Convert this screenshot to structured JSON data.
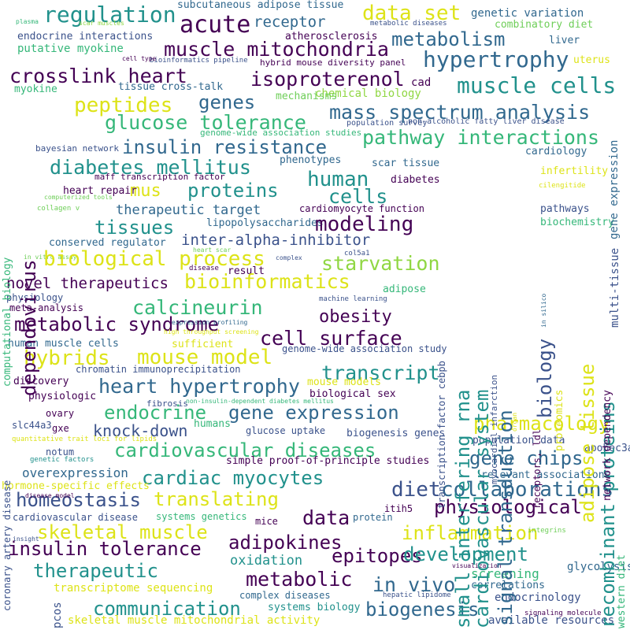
{
  "palette": {
    "dark_purple": "#440154",
    "indigo": "#3b528b",
    "blue": "#31688e",
    "teal": "#21918c",
    "green": "#35b779",
    "light_green": "#6ece58",
    "lime": "#90d743",
    "yellow": "#dde318",
    "bright_yellow": "#fde725"
  },
  "words": [
    {
      "text": "subcutaneous adipose tissue"
    },
    {
      "text": "data set"
    },
    {
      "text": "genetic variation"
    },
    {
      "text": "regulation"
    },
    {
      "text": "acute"
    },
    {
      "text": "receptor"
    },
    {
      "text": "combinatory diet"
    },
    {
      "text": "endocrine interactions"
    },
    {
      "text": "metabolism"
    },
    {
      "text": "muscle mitochondria"
    },
    {
      "text": "atherosclerosis"
    },
    {
      "text": "liver"
    },
    {
      "text": "putative myokine"
    },
    {
      "text": "hypertrophy"
    },
    {
      "text": "uterus"
    },
    {
      "text": "hybrid mouse diversity panel"
    },
    {
      "text": "bioinformatics pipeline"
    },
    {
      "text": "crosslink heart"
    },
    {
      "text": "isoproterenol"
    },
    {
      "text": "cad"
    },
    {
      "text": "muscle cells"
    },
    {
      "text": "myokine"
    },
    {
      "text": "tissue cross-talk"
    },
    {
      "text": "chemical biology"
    },
    {
      "text": "mechanisms"
    },
    {
      "text": "genes"
    },
    {
      "text": "peptides"
    },
    {
      "text": "mass spectrum analysis"
    },
    {
      "text": "glucose tolerance"
    },
    {
      "text": "gene expression"
    },
    {
      "text": "non-alcoholic fatty liver disease"
    },
    {
      "text": "population survey"
    },
    {
      "text": "genome-wide association studies"
    },
    {
      "text": "insulin resistance"
    },
    {
      "text": "pathway interactions"
    },
    {
      "text": "bayesian network"
    },
    {
      "text": "phenotypes"
    },
    {
      "text": "cardiology"
    },
    {
      "text": "diabetes mellitus"
    },
    {
      "text": "scar tissue"
    },
    {
      "text": "dependovirus"
    },
    {
      "text": "computational biology"
    },
    {
      "text": "maff transcription factor"
    },
    {
      "text": "human"
    },
    {
      "text": "infertility"
    },
    {
      "text": "mus"
    },
    {
      "text": "proteins"
    },
    {
      "text": "diabetes"
    },
    {
      "text": "heart repair"
    },
    {
      "text": "cells"
    },
    {
      "text": "cilengitide"
    },
    {
      "text": "computerized tools"
    },
    {
      "text": "therapeutic target"
    },
    {
      "text": "cardiomyocyte function"
    },
    {
      "text": "pathways"
    },
    {
      "text": "collagen v"
    },
    {
      "text": "lipopolysaccharides"
    },
    {
      "text": "tissues"
    },
    {
      "text": "modeling"
    },
    {
      "text": "biochemistry"
    },
    {
      "text": "conserved regulator"
    },
    {
      "text": "inter-alpha-inhibitor"
    },
    {
      "text": "multi-tissue"
    },
    {
      "text": "heart scar"
    },
    {
      "text": "col5a1"
    },
    {
      "text": "in vitro assay"
    },
    {
      "text": "complex"
    },
    {
      "text": "biological process"
    },
    {
      "text": "starvation"
    },
    {
      "text": "disease"
    },
    {
      "text": "result"
    },
    {
      "text": "novel therapeutics"
    },
    {
      "text": "bioinformatics"
    },
    {
      "text": "adipose"
    },
    {
      "text": "physiology"
    },
    {
      "text": "machine learning"
    },
    {
      "text": "meta-analysis"
    },
    {
      "text": "calcineurin"
    },
    {
      "text": "metabolic syndrome"
    },
    {
      "text": "obesity"
    },
    {
      "text": "expression profiling"
    },
    {
      "text": "cell surface"
    },
    {
      "text": "high throughput screening"
    },
    {
      "text": "human muscle cells"
    },
    {
      "text": "sufficient"
    },
    {
      "text": "genome-wide association study"
    },
    {
      "text": "hybrids"
    },
    {
      "text": "mouse model"
    },
    {
      "text": "chromatin immunoprecipitation"
    },
    {
      "text": "transcript"
    },
    {
      "text": "mouse models"
    },
    {
      "text": "discovery"
    },
    {
      "text": "heart hypertrophy"
    },
    {
      "text": "biological sex"
    },
    {
      "text": "physiologic"
    },
    {
      "text": "fibrosis"
    },
    {
      "text": "ovary"
    },
    {
      "text": "non-insulin-dependent diabetes mellitus"
    },
    {
      "text": "endocrine"
    },
    {
      "text": "gene expression"
    },
    {
      "text": "slc44a3"
    },
    {
      "text": "gxe"
    },
    {
      "text": "humans"
    },
    {
      "text": "knock-down"
    },
    {
      "text": "glucose uptake"
    },
    {
      "text": "biogenesis genes"
    },
    {
      "text": "pharmacology"
    },
    {
      "text": "quantitative trait loci for lipids"
    },
    {
      "text": "notum"
    },
    {
      "text": "population data"
    },
    {
      "text": "cardiovascular diseases"
    },
    {
      "text": "genetic factors"
    },
    {
      "text": "simple proof-of-principle studies"
    },
    {
      "text": "gene chips"
    },
    {
      "text": "apobec3a"
    },
    {
      "text": "overexpression"
    },
    {
      "text": "cardiac myocytes"
    },
    {
      "text": "relevant associations"
    },
    {
      "text": "hormone-specific effects"
    },
    {
      "text": "diet"
    },
    {
      "text": "collaborations"
    },
    {
      "text": "homeostasis"
    },
    {
      "text": "translating"
    },
    {
      "text": "disease model"
    },
    {
      "text": "physiological"
    },
    {
      "text": "itih5"
    },
    {
      "text": "cardiovascular disease"
    },
    {
      "text": "data"
    },
    {
      "text": "systems genetics"
    },
    {
      "text": "protein"
    },
    {
      "text": "mice"
    },
    {
      "text": "skeletal muscle"
    },
    {
      "text": "inflammation"
    },
    {
      "text": "integrins"
    },
    {
      "text": "insight"
    },
    {
      "text": "insulin tolerance"
    },
    {
      "text": "adipokines"
    },
    {
      "text": "epitopes"
    },
    {
      "text": "development"
    },
    {
      "text": "therapeutic"
    },
    {
      "text": "oxidation"
    },
    {
      "text": "screening"
    },
    {
      "text": "glycolysis"
    },
    {
      "text": "visualization"
    },
    {
      "text": "metabolic"
    },
    {
      "text": "in vivo"
    },
    {
      "text": "correlations"
    },
    {
      "text": "transcriptome sequencing"
    },
    {
      "text": "complex diseases"
    },
    {
      "text": "hepatic lipidome"
    },
    {
      "text": "endocrinology"
    },
    {
      "text": "communication"
    },
    {
      "text": "biogenesis"
    },
    {
      "text": "systems biology"
    },
    {
      "text": "signaling molecule"
    },
    {
      "text": "skeletal muscle mitochondrial activity"
    },
    {
      "text": "available resources"
    },
    {
      "text": "pcos"
    },
    {
      "text": "plasma"
    },
    {
      "text": "scar muscles"
    },
    {
      "text": "metabolic diseases"
    },
    {
      "text": "cell type"
    },
    {
      "text": "small interfering rna"
    },
    {
      "text": "cardiovascular system"
    },
    {
      "text": "signal transduction"
    },
    {
      "text": "biology"
    },
    {
      "text": "recombinant proteins"
    },
    {
      "text": "adipose tissue"
    },
    {
      "text": "transcription factor cebpb"
    },
    {
      "text": "in silico"
    },
    {
      "text": "myocardial infarction"
    },
    {
      "text": "receptors, ldl"
    },
    {
      "text": "proteomics"
    },
    {
      "text": "network dependency"
    },
    {
      "text": "organ"
    },
    {
      "text": "coronary artery disease"
    },
    {
      "text": "western diet"
    }
  ]
}
